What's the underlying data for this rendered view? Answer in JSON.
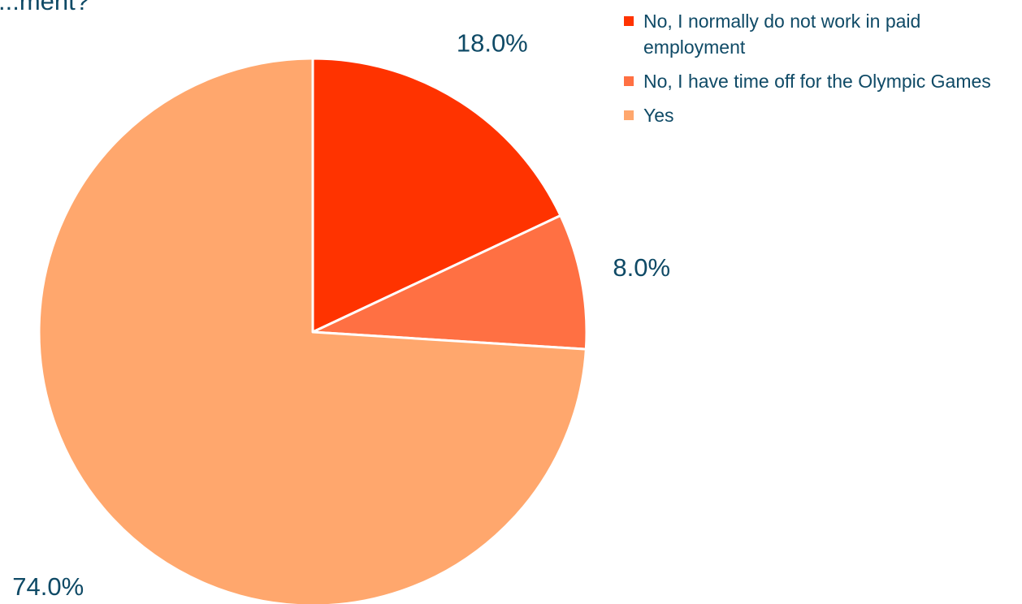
{
  "chart_data": {
    "type": "pie",
    "title": "...ment?",
    "categories": [
      "No, I normally do not work in paid employment",
      "No, I have time off for the Olympic Games",
      "Yes"
    ],
    "values": [
      18.0,
      8.0,
      74.0
    ],
    "value_labels": [
      "18.0%",
      "8.0%",
      "74.0%"
    ],
    "colors": [
      "#ff3300",
      "#ff7043",
      "#ffa76d"
    ],
    "legend_position": "top-right",
    "start_angle": "12 o'clock",
    "direction": "clockwise"
  }
}
